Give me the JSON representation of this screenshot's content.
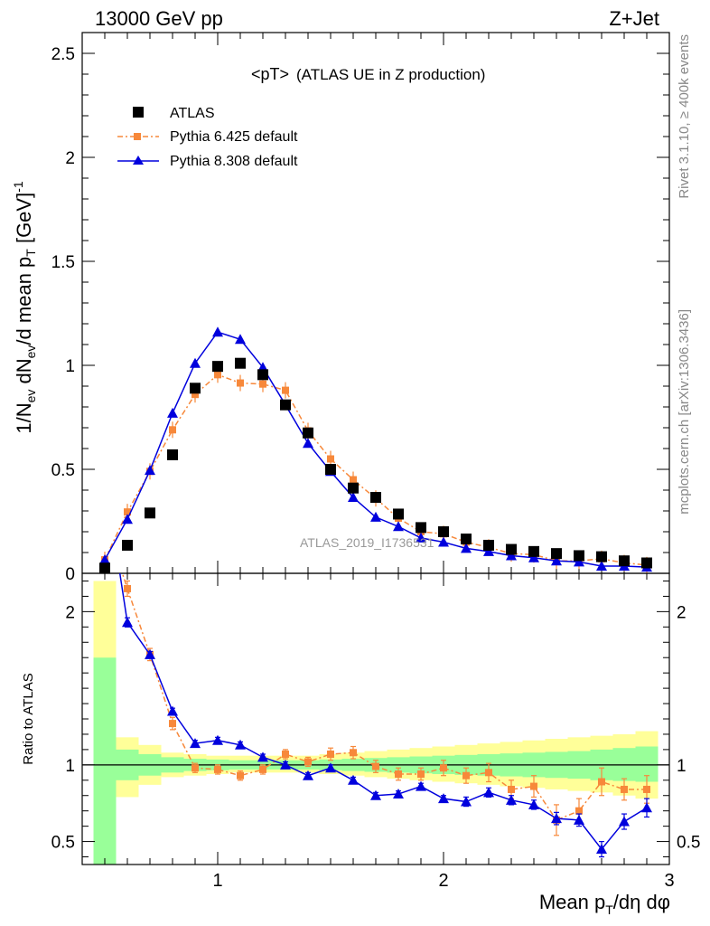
{
  "header": {
    "left": "13000 GeV pp",
    "right": "Z+Jet"
  },
  "side_labels": {
    "rivet": "Rivet 3.1.10, ≥ 400k events",
    "mcplots": "mcplots.cern.ch [arXiv:1306.3436]"
  },
  "chart_data": [
    {
      "type": "scatter",
      "title": "<pT>",
      "subtitle": "(ATLAS UE in Z production)",
      "ylabel": "1/N_ev dN_ev/d mean p_T [GeV]^-1",
      "watermark": "ATLAS_2019_I1736531",
      "xlim": [
        0.4,
        3.0
      ],
      "ylim": [
        0,
        2.6
      ],
      "yticks": [
        0,
        0.5,
        1,
        1.5,
        2,
        2.5
      ],
      "ytick_labels": [
        "0",
        "0.5",
        "1",
        "1.5",
        "2",
        "2.5"
      ],
      "legend_position": "top-left",
      "x": [
        0.5,
        0.6,
        0.7,
        0.8,
        0.9,
        1.0,
        1.1,
        1.2,
        1.3,
        1.4,
        1.5,
        1.6,
        1.7,
        1.8,
        1.9,
        2.0,
        2.1,
        2.2,
        2.3,
        2.4,
        2.5,
        2.6,
        2.7,
        2.8,
        2.9
      ],
      "series": [
        {
          "name": "ATLAS",
          "color": "#000000",
          "marker": "square",
          "values": [
            0.025,
            0.135,
            0.29,
            0.57,
            0.89,
            0.995,
            1.01,
            0.955,
            0.81,
            0.675,
            0.5,
            0.41,
            0.365,
            0.285,
            0.22,
            0.2,
            0.165,
            0.135,
            0.115,
            0.105,
            0.095,
            0.085,
            0.08,
            0.06,
            0.05
          ]
        },
        {
          "name": "Pythia 6.425 default",
          "color": "#f7883a",
          "marker": "square-small",
          "values": [
            0.065,
            0.295,
            0.49,
            0.69,
            0.86,
            0.955,
            0.915,
            0.91,
            0.88,
            0.685,
            0.55,
            0.45,
            0.36,
            0.265,
            0.2,
            0.19,
            0.15,
            0.125,
            0.095,
            0.09,
            0.06,
            0.06,
            0.07,
            0.05,
            0.04
          ]
        },
        {
          "name": "Pythia 8.308 default",
          "color": "#0000dd",
          "marker": "triangle",
          "values": [
            0.065,
            0.26,
            0.495,
            0.77,
            1.01,
            1.16,
            1.125,
            0.99,
            0.81,
            0.625,
            0.49,
            0.365,
            0.27,
            0.225,
            0.17,
            0.15,
            0.12,
            0.105,
            0.085,
            0.075,
            0.06,
            0.055,
            0.035,
            0.035,
            0.03
          ]
        }
      ]
    },
    {
      "type": "scatter",
      "ylabel": "Ratio to ATLAS",
      "xlabel": "Mean p_T/dη dφ",
      "xlim": [
        0.4,
        3.0
      ],
      "ylim": [
        0.35,
        2.25
      ],
      "xticks": [
        1,
        2,
        3
      ],
      "xtick_labels": [
        "1",
        "2",
        "3"
      ],
      "yticks": [
        0.5,
        1,
        2
      ],
      "ytick_labels": [
        "0.5",
        "1",
        "2"
      ],
      "reference_line": 1,
      "bands": {
        "x_edges": [
          0.45,
          0.55,
          0.65,
          0.75,
          0.85,
          0.95,
          1.05,
          1.15,
          1.25,
          1.35,
          1.45,
          1.55,
          1.65,
          1.75,
          1.85,
          1.95,
          2.05,
          2.15,
          2.25,
          2.35,
          2.45,
          2.55,
          2.65,
          2.75,
          2.85,
          2.95
        ],
        "yellow_low": [
          0.35,
          0.79,
          0.87,
          0.92,
          0.93,
          0.94,
          0.95,
          0.95,
          0.95,
          0.95,
          0.94,
          0.93,
          0.92,
          0.91,
          0.9,
          0.89,
          0.88,
          0.87,
          0.86,
          0.85,
          0.84,
          0.83,
          0.82,
          0.8,
          0.78
        ],
        "yellow_high": [
          2.2,
          1.18,
          1.13,
          1.08,
          1.07,
          1.06,
          1.06,
          1.06,
          1.06,
          1.06,
          1.07,
          1.08,
          1.09,
          1.1,
          1.11,
          1.12,
          1.13,
          1.14,
          1.15,
          1.16,
          1.17,
          1.18,
          1.19,
          1.2,
          1.22
        ],
        "green_low": [
          0.35,
          0.9,
          0.93,
          0.95,
          0.96,
          0.965,
          0.97,
          0.97,
          0.97,
          0.97,
          0.965,
          0.96,
          0.955,
          0.95,
          0.945,
          0.94,
          0.935,
          0.93,
          0.925,
          0.92,
          0.915,
          0.91,
          0.9,
          0.895,
          0.89
        ],
        "green_high": [
          1.7,
          1.1,
          1.07,
          1.05,
          1.04,
          1.035,
          1.03,
          1.03,
          1.03,
          1.03,
          1.035,
          1.04,
          1.045,
          1.05,
          1.055,
          1.06,
          1.065,
          1.07,
          1.075,
          1.08,
          1.085,
          1.09,
          1.1,
          1.11,
          1.12
        ],
        "yellow_color": "#ffff99",
        "green_color": "#99ff99"
      },
      "x": [
        0.6,
        0.7,
        0.8,
        0.9,
        1.0,
        1.1,
        1.2,
        1.3,
        1.4,
        1.5,
        1.6,
        1.7,
        1.8,
        1.9,
        2.0,
        2.1,
        2.2,
        2.3,
        2.4,
        2.5,
        2.6,
        2.7,
        2.8,
        2.9
      ],
      "series": [
        {
          "name": "Pythia 6.425 default",
          "color": "#f7883a",
          "values": [
            2.15,
            1.72,
            1.27,
            0.98,
            0.97,
            0.93,
            0.97,
            1.07,
            1.02,
            1.07,
            1.08,
            0.99,
            0.94,
            0.94,
            0.98,
            0.93,
            0.95,
            0.84,
            0.86,
            0.64,
            0.7,
            0.89,
            0.84,
            0.84
          ],
          "errors": [
            0.05,
            0.04,
            0.04,
            0.03,
            0.03,
            0.03,
            0.03,
            0.03,
            0.03,
            0.04,
            0.04,
            0.04,
            0.04,
            0.04,
            0.05,
            0.05,
            0.06,
            0.06,
            0.07,
            0.1,
            0.08,
            0.09,
            0.07,
            0.09
          ]
        },
        {
          "name": "Pythia 8.308 default",
          "color": "#0000dd",
          "values": [
            1.93,
            1.72,
            1.35,
            1.14,
            1.16,
            1.13,
            1.05,
            1.0,
            0.93,
            0.98,
            0.9,
            0.8,
            0.81,
            0.86,
            0.78,
            0.76,
            0.82,
            0.77,
            0.74,
            0.65,
            0.64,
            0.45,
            0.63,
            0.72
          ],
          "errors": [
            0.03,
            0.02,
            0.02,
            0.02,
            0.02,
            0.02,
            0.02,
            0.02,
            0.02,
            0.02,
            0.02,
            0.02,
            0.02,
            0.02,
            0.02,
            0.03,
            0.03,
            0.03,
            0.03,
            0.04,
            0.04,
            0.05,
            0.05,
            0.06
          ]
        }
      ]
    }
  ]
}
